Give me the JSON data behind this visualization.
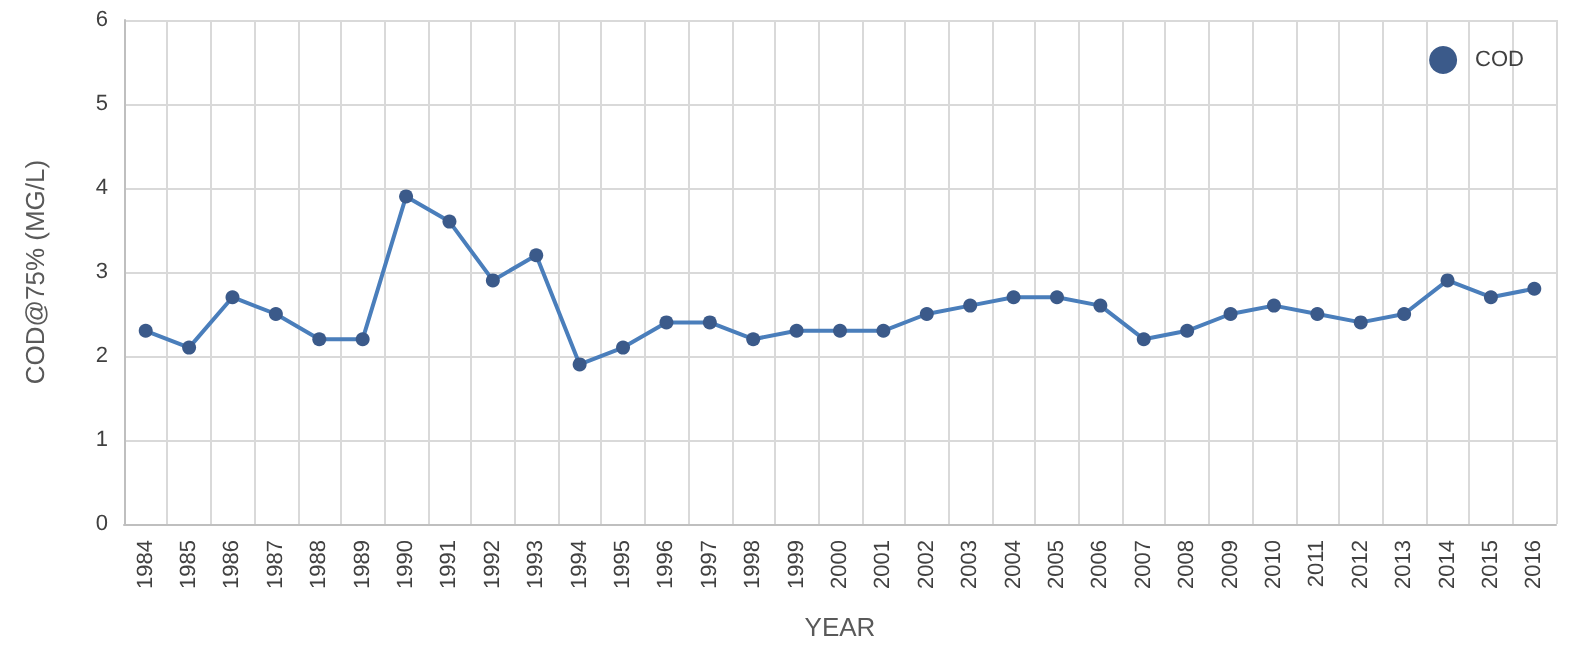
{
  "chart_data": {
    "type": "line",
    "xlabel": "YEAR",
    "ylabel": "COD@75% (MG/L)",
    "categories": [
      "1984",
      "1985",
      "1986",
      "1987",
      "1988",
      "1989",
      "1990",
      "1991",
      "1992",
      "1993",
      "1994",
      "1995",
      "1996",
      "1997",
      "1998",
      "1999",
      "2000",
      "2001",
      "2002",
      "2003",
      "2004",
      "2005",
      "2006",
      "2007",
      "2008",
      "2009",
      "2010",
      "2011",
      "2012",
      "2013",
      "2014",
      "2015",
      "2016"
    ],
    "series": [
      {
        "name": "COD",
        "color": "#4a7ebb",
        "values": [
          2.3,
          2.1,
          2.7,
          2.5,
          2.2,
          2.2,
          3.9,
          3.6,
          2.9,
          3.2,
          1.9,
          2.1,
          2.4,
          2.4,
          2.2,
          2.3,
          2.3,
          2.3,
          2.5,
          2.6,
          2.7,
          2.7,
          2.6,
          2.2,
          2.3,
          2.5,
          2.6,
          2.5,
          2.4,
          2.5,
          2.9,
          2.7,
          2.8
        ]
      }
    ],
    "ylim": [
      0,
      6
    ],
    "yticks": [
      0,
      1,
      2,
      3,
      4,
      5,
      6
    ],
    "grid": true,
    "legend": "top right",
    "marker": "circle",
    "line_style": "solid"
  }
}
